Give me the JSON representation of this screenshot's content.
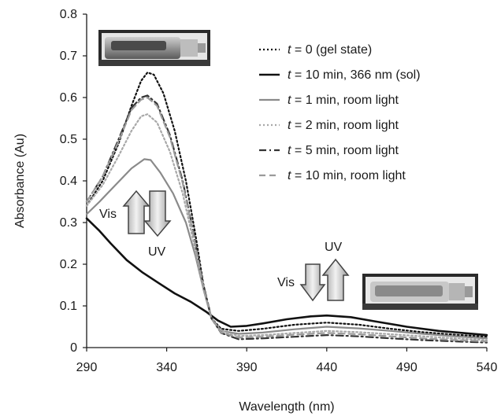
{
  "chart_data": {
    "type": "line",
    "xlabel": "Wavelength (nm)",
    "ylabel": "Absorbance (Au)",
    "xlim": [
      290,
      540
    ],
    "ylim": [
      0,
      0.8
    ],
    "xticks": [
      290,
      340,
      390,
      440,
      490,
      540
    ],
    "yticks": [
      0,
      0.1,
      0.2,
      0.3,
      0.4,
      0.5,
      0.6,
      0.7,
      0.8
    ],
    "grid": false,
    "legend_position": "top-right",
    "series": [
      {
        "name_prefix": "t",
        "name": " = 0 (gel state)",
        "color": "#111111",
        "dash": "dotted",
        "points": [
          [
            290,
            0.34
          ],
          [
            300,
            0.4
          ],
          [
            310,
            0.49
          ],
          [
            318,
            0.58
          ],
          [
            324,
            0.64
          ],
          [
            328,
            0.66
          ],
          [
            332,
            0.655
          ],
          [
            338,
            0.61
          ],
          [
            345,
            0.52
          ],
          [
            352,
            0.4
          ],
          [
            358,
            0.27
          ],
          [
            363,
            0.15
          ],
          [
            368,
            0.07
          ],
          [
            374,
            0.045
          ],
          [
            385,
            0.04
          ],
          [
            400,
            0.045
          ],
          [
            420,
            0.055
          ],
          [
            440,
            0.06
          ],
          [
            460,
            0.055
          ],
          [
            480,
            0.045
          ],
          [
            500,
            0.037
          ],
          [
            520,
            0.031
          ],
          [
            540,
            0.026
          ]
        ]
      },
      {
        "name_prefix": "t",
        "name": " = 10 min, 366 nm (sol)",
        "color": "#111111",
        "dash": "solid",
        "points": [
          [
            290,
            0.31
          ],
          [
            298,
            0.28
          ],
          [
            305,
            0.25
          ],
          [
            315,
            0.21
          ],
          [
            325,
            0.18
          ],
          [
            335,
            0.155
          ],
          [
            345,
            0.13
          ],
          [
            355,
            0.11
          ],
          [
            365,
            0.085
          ],
          [
            372,
            0.065
          ],
          [
            380,
            0.05
          ],
          [
            390,
            0.052
          ],
          [
            400,
            0.058
          ],
          [
            415,
            0.068
          ],
          [
            430,
            0.075
          ],
          [
            440,
            0.077
          ],
          [
            455,
            0.073
          ],
          [
            470,
            0.063
          ],
          [
            490,
            0.05
          ],
          [
            510,
            0.04
          ],
          [
            525,
            0.035
          ],
          [
            540,
            0.03
          ]
        ]
      },
      {
        "name_prefix": "t",
        "name": " = 1 min, room light",
        "color": "#8a8a8a",
        "dash": "solid",
        "points": [
          [
            290,
            0.32
          ],
          [
            298,
            0.35
          ],
          [
            308,
            0.39
          ],
          [
            318,
            0.43
          ],
          [
            326,
            0.452
          ],
          [
            330,
            0.45
          ],
          [
            336,
            0.42
          ],
          [
            344,
            0.37
          ],
          [
            352,
            0.3
          ],
          [
            358,
            0.22
          ],
          [
            363,
            0.14
          ],
          [
            368,
            0.07
          ],
          [
            374,
            0.04
          ],
          [
            385,
            0.033
          ],
          [
            400,
            0.036
          ],
          [
            420,
            0.044
          ],
          [
            440,
            0.05
          ],
          [
            460,
            0.046
          ],
          [
            480,
            0.04
          ],
          [
            500,
            0.033
          ],
          [
            520,
            0.027
          ],
          [
            540,
            0.022
          ]
        ]
      },
      {
        "name_prefix": "t",
        "name": " = 2 min, room light",
        "color": "#a8a8a8",
        "dash": "dotted",
        "points": [
          [
            290,
            0.34
          ],
          [
            300,
            0.39
          ],
          [
            310,
            0.46
          ],
          [
            318,
            0.52
          ],
          [
            324,
            0.555
          ],
          [
            328,
            0.56
          ],
          [
            334,
            0.54
          ],
          [
            342,
            0.47
          ],
          [
            350,
            0.37
          ],
          [
            357,
            0.25
          ],
          [
            363,
            0.14
          ],
          [
            368,
            0.07
          ],
          [
            374,
            0.04
          ],
          [
            385,
            0.028
          ],
          [
            400,
            0.03
          ],
          [
            420,
            0.035
          ],
          [
            440,
            0.04
          ],
          [
            460,
            0.037
          ],
          [
            480,
            0.032
          ],
          [
            500,
            0.027
          ],
          [
            520,
            0.022
          ],
          [
            540,
            0.018
          ]
        ]
      },
      {
        "name_prefix": "t",
        "name": " = 5 min, room light",
        "color": "#333333",
        "dash": "dashdot",
        "points": [
          [
            290,
            0.35
          ],
          [
            300,
            0.41
          ],
          [
            310,
            0.5
          ],
          [
            318,
            0.575
          ],
          [
            324,
            0.6
          ],
          [
            328,
            0.605
          ],
          [
            334,
            0.585
          ],
          [
            342,
            0.51
          ],
          [
            350,
            0.4
          ],
          [
            357,
            0.27
          ],
          [
            363,
            0.15
          ],
          [
            368,
            0.07
          ],
          [
            374,
            0.035
          ],
          [
            385,
            0.02
          ],
          [
            400,
            0.022
          ],
          [
            420,
            0.026
          ],
          [
            440,
            0.03
          ],
          [
            460,
            0.027
          ],
          [
            480,
            0.022
          ],
          [
            500,
            0.018
          ],
          [
            520,
            0.015
          ],
          [
            540,
            0.012
          ]
        ]
      },
      {
        "name_prefix": "t",
        "name": " = 10 min, room light",
        "color": "#9a9a9a",
        "dash": "dashed",
        "points": [
          [
            290,
            0.35
          ],
          [
            300,
            0.41
          ],
          [
            310,
            0.495
          ],
          [
            318,
            0.57
          ],
          [
            324,
            0.595
          ],
          [
            328,
            0.6
          ],
          [
            334,
            0.58
          ],
          [
            342,
            0.505
          ],
          [
            350,
            0.395
          ],
          [
            357,
            0.265
          ],
          [
            363,
            0.145
          ],
          [
            368,
            0.07
          ],
          [
            374,
            0.036
          ],
          [
            385,
            0.024
          ],
          [
            400,
            0.026
          ],
          [
            420,
            0.031
          ],
          [
            440,
            0.035
          ],
          [
            460,
            0.032
          ],
          [
            480,
            0.027
          ],
          [
            500,
            0.022
          ],
          [
            520,
            0.018
          ],
          [
            540,
            0.015
          ]
        ]
      }
    ]
  },
  "annotations": {
    "left_vis": "Vis",
    "left_uv": "UV",
    "right_vis": "Vis",
    "right_uv": "UV",
    "image_top": "gel vial photograph",
    "image_right": "sol vial photograph"
  }
}
